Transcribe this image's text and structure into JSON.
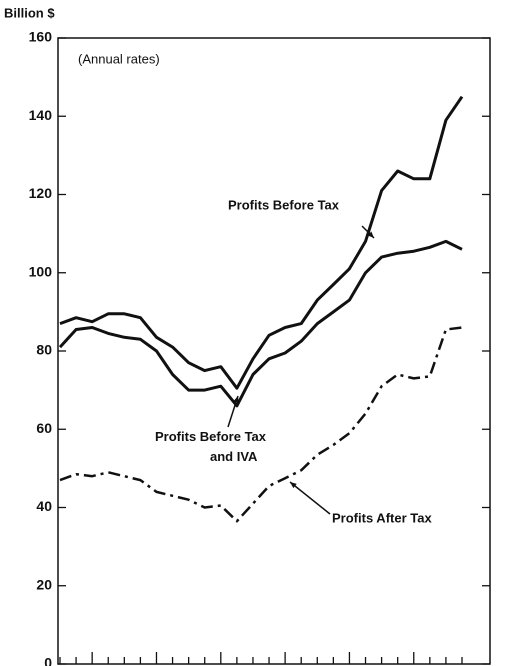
{
  "chart_data": {
    "type": "line",
    "y_label": "Billion $",
    "annotation": "(Annual rates)",
    "categories": [
      null,
      null,
      null,
      null,
      null,
      null,
      null,
      null,
      null,
      null,
      null,
      null,
      null,
      null,
      null,
      null,
      null,
      null,
      null,
      null,
      null,
      null,
      null,
      null,
      null,
      null
    ],
    "ylim": [
      0,
      160
    ],
    "yticks": [
      0,
      20,
      40,
      60,
      80,
      100,
      120,
      140,
      160
    ],
    "series": [
      {
        "name": "Profits Before Tax",
        "color": "#111111",
        "dash": "solid",
        "values": [
          87,
          88.5,
          87.5,
          89.5,
          89.5,
          88.5,
          83.5,
          81,
          77,
          75,
          76,
          70.5,
          78,
          84,
          86,
          87,
          93,
          97,
          101,
          108,
          121,
          126,
          124,
          124,
          139,
          145
        ]
      },
      {
        "name": "Profits Before Tax and IVA",
        "color": "#111111",
        "dash": "solid",
        "values": [
          81,
          85.5,
          86,
          84.5,
          83.5,
          83,
          80,
          74,
          70,
          70,
          71,
          66,
          74,
          78,
          79.5,
          82.5,
          87,
          90,
          93,
          100,
          104,
          105,
          105.5,
          106.5,
          108,
          106
        ]
      },
      {
        "name": "Profits After Tax",
        "color": "#111111",
        "dash": "dashdot",
        "values": [
          47,
          48.5,
          48,
          49,
          48,
          47,
          44,
          43,
          42,
          40,
          40.5,
          36.5,
          41,
          45.5,
          47.5,
          49.5,
          53.5,
          56,
          59,
          64,
          71,
          74,
          73,
          73.5,
          85.5,
          86
        ]
      }
    ]
  }
}
